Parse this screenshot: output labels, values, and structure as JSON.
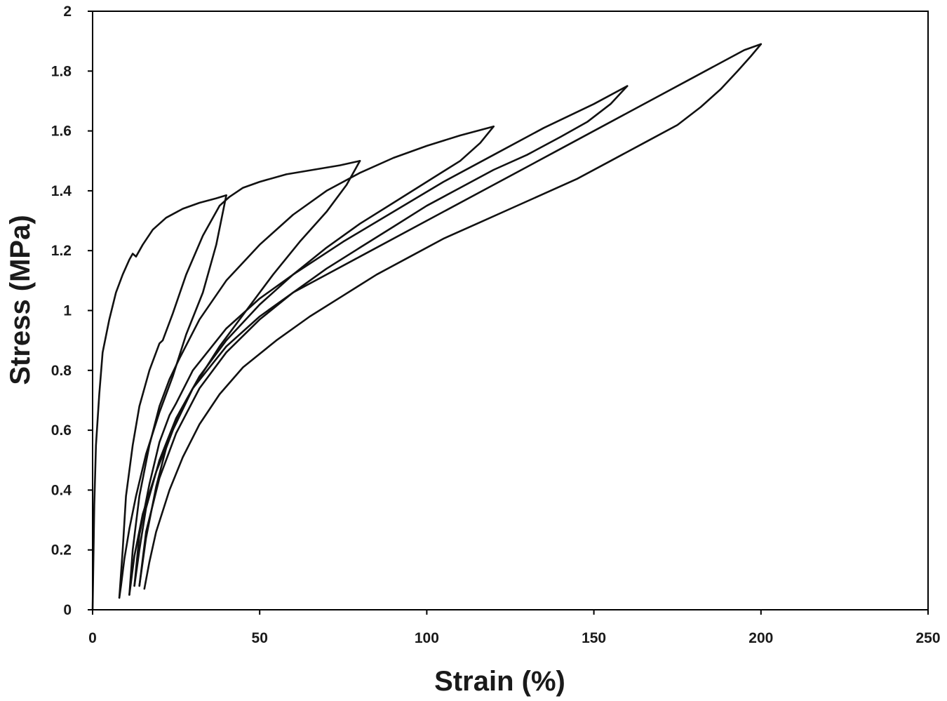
{
  "chart_data": {
    "type": "line",
    "xlabel": "Strain (%)",
    "ylabel": "Stress (MPa)",
    "xlim": [
      0,
      250
    ],
    "ylim": [
      0,
      2
    ],
    "xticks": [
      "0",
      "50",
      "100",
      "150",
      "200",
      "250"
    ],
    "yticks": [
      "0",
      "0.2",
      "0.4",
      "0.6",
      "0.8",
      "1",
      "1.2",
      "1.4",
      "1.6",
      "1.8",
      "2"
    ],
    "grid": false,
    "legend": "none",
    "series": [
      {
        "x": [
          0,
          0.5,
          1,
          2,
          3,
          5,
          7,
          9,
          11,
          12,
          13,
          15,
          18,
          22,
          27,
          32,
          37,
          40
        ],
        "y": [
          0,
          0.35,
          0.55,
          0.72,
          0.86,
          0.97,
          1.06,
          1.12,
          1.17,
          1.19,
          1.18,
          1.22,
          1.27,
          1.31,
          1.34,
          1.36,
          1.375,
          1.385
        ]
      },
      {
        "x": [
          40,
          37,
          33,
          28,
          24,
          20,
          16,
          13,
          11,
          9.5,
          8.5,
          8
        ],
        "y": [
          1.385,
          1.22,
          1.06,
          0.92,
          0.78,
          0.66,
          0.52,
          0.38,
          0.27,
          0.17,
          0.08,
          0.04
        ]
      },
      {
        "x": [
          8,
          9,
          10,
          12,
          14,
          17,
          20,
          21,
          24,
          28,
          33,
          38,
          41,
          45,
          50,
          58,
          66,
          74,
          80
        ],
        "y": [
          0.04,
          0.2,
          0.38,
          0.55,
          0.68,
          0.8,
          0.89,
          0.9,
          0.99,
          1.12,
          1.25,
          1.35,
          1.38,
          1.41,
          1.43,
          1.455,
          1.47,
          1.485,
          1.5
        ]
      },
      {
        "x": [
          80,
          76,
          70,
          62,
          54,
          46,
          38,
          30,
          24,
          19,
          15,
          12.5,
          11
        ],
        "y": [
          1.5,
          1.42,
          1.33,
          1.23,
          1.12,
          1.0,
          0.88,
          0.74,
          0.6,
          0.46,
          0.32,
          0.18,
          0.05
        ]
      },
      {
        "x": [
          11,
          12,
          14,
          17,
          20,
          22,
          23,
          26,
          32,
          40,
          50,
          60,
          70,
          80,
          90,
          100,
          110,
          120
        ],
        "y": [
          0.05,
          0.2,
          0.38,
          0.55,
          0.68,
          0.74,
          0.77,
          0.84,
          0.97,
          1.1,
          1.22,
          1.32,
          1.4,
          1.46,
          1.51,
          1.55,
          1.585,
          1.615
        ]
      },
      {
        "x": [
          120,
          116,
          110,
          100,
          90,
          80,
          70,
          60,
          50,
          40,
          32,
          25,
          20,
          16,
          14,
          12.5
        ],
        "y": [
          1.615,
          1.56,
          1.5,
          1.43,
          1.36,
          1.29,
          1.21,
          1.12,
          1.02,
          0.9,
          0.78,
          0.64,
          0.5,
          0.34,
          0.2,
          0.08
        ]
      },
      {
        "x": [
          12.5,
          14,
          17,
          20,
          23,
          25,
          30,
          40,
          50,
          60,
          75,
          90,
          105,
          120,
          135,
          150,
          160
        ],
        "y": [
          0.08,
          0.25,
          0.42,
          0.56,
          0.65,
          0.69,
          0.8,
          0.94,
          1.04,
          1.12,
          1.23,
          1.33,
          1.43,
          1.52,
          1.61,
          1.69,
          1.75
        ]
      },
      {
        "x": [
          160,
          155,
          148,
          140,
          130,
          120,
          110,
          100,
          90,
          80,
          70,
          60,
          50,
          40,
          32,
          25,
          20,
          16,
          14
        ],
        "y": [
          1.75,
          1.69,
          1.63,
          1.58,
          1.52,
          1.47,
          1.41,
          1.35,
          1.28,
          1.21,
          1.14,
          1.06,
          0.97,
          0.86,
          0.74,
          0.59,
          0.44,
          0.26,
          0.08
        ]
      },
      {
        "x": [
          14,
          16,
          19,
          22,
          26,
          30,
          40,
          50,
          60,
          80,
          100,
          120,
          140,
          160,
          180,
          195,
          200
        ],
        "y": [
          0.08,
          0.24,
          0.41,
          0.54,
          0.66,
          0.74,
          0.88,
          0.98,
          1.06,
          1.18,
          1.3,
          1.42,
          1.54,
          1.66,
          1.78,
          1.87,
          1.89
        ]
      },
      {
        "x": [
          200,
          197,
          193,
          188,
          182,
          175,
          165,
          155,
          145,
          135,
          125,
          115,
          105,
          95,
          85,
          75,
          65,
          55,
          45,
          38,
          32,
          27,
          23,
          19,
          17,
          15.5
        ],
        "y": [
          1.89,
          1.85,
          1.8,
          1.74,
          1.68,
          1.62,
          1.56,
          1.5,
          1.44,
          1.39,
          1.34,
          1.29,
          1.24,
          1.18,
          1.12,
          1.05,
          0.98,
          0.9,
          0.81,
          0.72,
          0.62,
          0.51,
          0.4,
          0.26,
          0.16,
          0.07
        ]
      }
    ]
  }
}
